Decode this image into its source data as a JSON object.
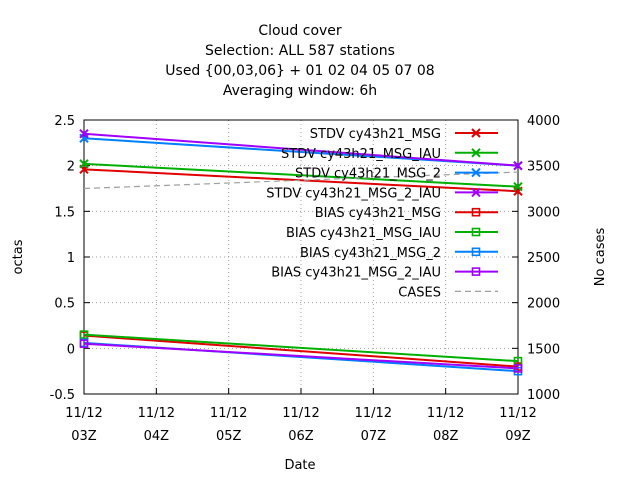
{
  "chart_data": {
    "type": "line",
    "title_lines": [
      "Cloud cover",
      "Selection: ALL    587 stations",
      "Used {00,03,06} + 01 02 04 05 07 08",
      "Averaging window:  6h"
    ],
    "xlabel": "Date",
    "ylabel": "octas",
    "y2label": "No cases",
    "x_dates": [
      "11/12",
      "11/12",
      "11/12",
      "11/12",
      "11/12",
      "11/12",
      "11/12"
    ],
    "x_hours": [
      "03Z",
      "04Z",
      "05Z",
      "06Z",
      "07Z",
      "08Z",
      "09Z"
    ],
    "x": [
      3,
      9
    ],
    "xlim": [
      3,
      9
    ],
    "ylim": [
      -0.5,
      2.5
    ],
    "yticks": [
      "-0.5",
      "0",
      "0.5",
      "1",
      "1.5",
      "2",
      "2.5"
    ],
    "y2lim": [
      1000,
      4000
    ],
    "y2ticks": [
      "1000",
      "1500",
      "2000",
      "2500",
      "3000",
      "3500",
      "4000"
    ],
    "grid": true,
    "legend_position": "top-right",
    "series": [
      {
        "name": "STDV cy43h21_MSG",
        "color": "#e00000",
        "marker": "x",
        "axis": "y",
        "dash": "solid",
        "values": [
          1.96,
          1.72
        ]
      },
      {
        "name": "STDV cy43h21_MSG_IAU",
        "color": "#00b000",
        "marker": "x",
        "axis": "y",
        "dash": "solid",
        "values": [
          2.02,
          1.77
        ]
      },
      {
        "name": "STDV cy43h21_MSG_2",
        "color": "#0080ff",
        "marker": "x",
        "axis": "y",
        "dash": "solid",
        "values": [
          2.3,
          2.0
        ]
      },
      {
        "name": "STDV cy43h21_MSG_2_IAU",
        "color": "#a000ff",
        "marker": "x",
        "axis": "y",
        "dash": "solid",
        "values": [
          2.35,
          2.0
        ]
      },
      {
        "name": "BIAS cy43h21_MSG",
        "color": "#e00000",
        "marker": "square",
        "axis": "y",
        "dash": "solid",
        "values": [
          0.14,
          -0.2
        ]
      },
      {
        "name": "BIAS cy43h21_MSG_IAU",
        "color": "#00b000",
        "marker": "square",
        "axis": "y",
        "dash": "solid",
        "values": [
          0.15,
          -0.14
        ]
      },
      {
        "name": "BIAS cy43h21_MSG_2",
        "color": "#0080ff",
        "marker": "square",
        "axis": "y",
        "dash": "solid",
        "values": [
          0.06,
          -0.25
        ]
      },
      {
        "name": "BIAS cy43h21_MSG_2_IAU",
        "color": "#a000ff",
        "marker": "square",
        "axis": "y",
        "dash": "solid",
        "values": [
          0.05,
          -0.22
        ]
      },
      {
        "name": "CASES",
        "color": "#a0a0a0",
        "marker": "none",
        "axis": "y2",
        "dash": "dashed",
        "values": [
          3250,
          3430
        ]
      }
    ]
  }
}
